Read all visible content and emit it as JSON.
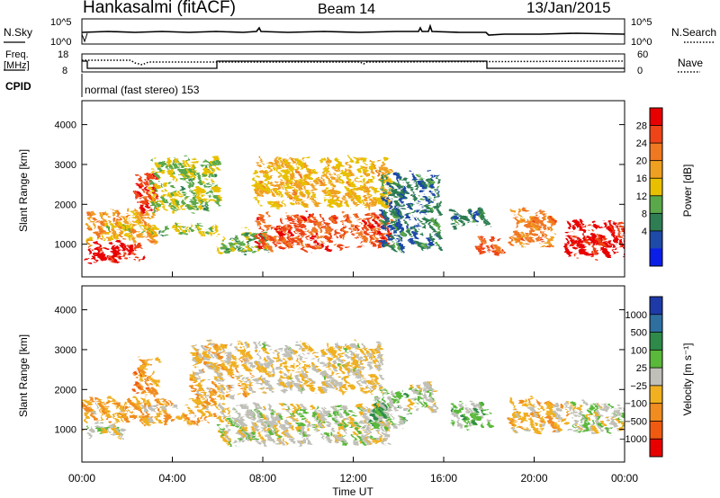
{
  "header": {
    "station": "Hankasalmi (fitACF)",
    "beam": "Beam 14",
    "date": "13/Jan/2015"
  },
  "panels": {
    "nsky_label": "N.Sky",
    "nsearch_label": "N.Search",
    "nsky_ticks": [
      "10^5",
      "10^0"
    ],
    "nsky_right_ticks": [
      "10^5",
      "10^0"
    ],
    "freq_label_line1": "Freq.",
    "freq_label_line2": "[MHz]",
    "freq_ticks": [
      "18",
      "8"
    ],
    "nave_label": "Nave",
    "nave_ticks": [
      "60",
      "0"
    ],
    "cpid_label": "CPID",
    "cpid_text": "normal (fast stereo) 153"
  },
  "axes": {
    "ylabel": "Slant Range [km]",
    "xlabel": "Time UT",
    "xticks": [
      "00:00",
      "04:00",
      "08:00",
      "12:00",
      "16:00",
      "20:00",
      "00:00"
    ],
    "yticks": [
      "1000",
      "2000",
      "3000",
      "4000"
    ]
  },
  "colorbars": {
    "power": {
      "label": "Power [dB]",
      "ticks": [
        "4",
        "8",
        "12",
        "16",
        "20",
        "24",
        "28"
      ],
      "colors": [
        "#0a1ee8",
        "#1e4aa8",
        "#2f7d52",
        "#5aa84a",
        "#e8c000",
        "#f0a020",
        "#f07820",
        "#ee4418",
        "#e80000"
      ]
    },
    "velocity": {
      "label": "Velocity [m s⁻¹]",
      "ticks": [
        "1000",
        "500",
        "100",
        "25",
        "−25",
        "−100",
        "−500",
        "−1000"
      ],
      "colors": [
        "#1e3aa8",
        "#2f6fa0",
        "#2f8a4a",
        "#5ab83a",
        "#c0c0b8",
        "#f0b020",
        "#f08c20",
        "#f05a10",
        "#e80000"
      ]
    }
  },
  "chart_data": [
    {
      "type": "heatmap",
      "title": "Power",
      "xlabel": "Time UT",
      "ylabel": "Slant Range [km]",
      "xlim": [
        "00:00",
        "24:00"
      ],
      "ylim": [
        180,
        4600
      ],
      "zlabel": "Power [dB]",
      "zlim": [
        0,
        32
      ],
      "regions": [
        {
          "t": [
            0.0,
            2.6
          ],
          "range": [
            650,
            1100
          ],
          "value": 30
        },
        {
          "t": [
            0.2,
            3.2
          ],
          "range": [
            1100,
            1900
          ],
          "value": 20
        },
        {
          "t": [
            2.3,
            3.3
          ],
          "range": [
            1900,
            2800
          ],
          "value": 28
        },
        {
          "t": [
            1.0,
            6.0
          ],
          "range": [
            1300,
            1500
          ],
          "value": 14
        },
        {
          "t": [
            3.0,
            6.0
          ],
          "range": [
            1900,
            3200
          ],
          "value": 14
        },
        {
          "t": [
            6.0,
            8.2
          ],
          "range": [
            850,
            1350
          ],
          "value": 12
        },
        {
          "t": [
            7.6,
            13.6
          ],
          "range": [
            950,
            1800
          ],
          "value": 26
        },
        {
          "t": [
            7.6,
            13.6
          ],
          "range": [
            2000,
            3200
          ],
          "value": 18
        },
        {
          "t": [
            13.2,
            15.8
          ],
          "range": [
            950,
            2800
          ],
          "value": 8
        },
        {
          "t": [
            16.3,
            17.9
          ],
          "range": [
            1500,
            1900
          ],
          "value": 10
        },
        {
          "t": [
            17.4,
            18.6
          ],
          "range": [
            820,
            1200
          ],
          "value": 26
        },
        {
          "t": [
            18.9,
            20.8
          ],
          "range": [
            1000,
            1900
          ],
          "value": 22
        },
        {
          "t": [
            21.3,
            24.0
          ],
          "range": [
            780,
            1600
          ],
          "value": 30
        }
      ]
    },
    {
      "type": "heatmap",
      "title": "Velocity",
      "xlabel": "Time UT",
      "ylabel": "Slant Range [km]",
      "xlim": [
        "00:00",
        "24:00"
      ],
      "ylim": [
        180,
        4600
      ],
      "zlabel": "Velocity [m s⁻¹]",
      "zlim": [
        -1000,
        1000
      ],
      "regions": [
        {
          "t": [
            0.0,
            5.9
          ],
          "range": [
            1200,
            1800
          ],
          "value": -300
        },
        {
          "t": [
            0.0,
            2.0
          ],
          "range": [
            880,
            1150
          ],
          "value": 0
        },
        {
          "t": [
            2.3,
            3.3
          ],
          "range": [
            1900,
            2800
          ],
          "value": -400
        },
        {
          "t": [
            4.8,
            7.5
          ],
          "range": [
            1850,
            3200
          ],
          "value": -200
        },
        {
          "t": [
            6.0,
            13.6
          ],
          "range": [
            700,
            1650
          ],
          "value": 0
        },
        {
          "t": [
            7.6,
            13.2
          ],
          "range": [
            2000,
            3200
          ],
          "value": -100
        },
        {
          "t": [
            12.7,
            14.3
          ],
          "range": [
            1100,
            2000
          ],
          "value": 200
        },
        {
          "t": [
            14.3,
            15.6
          ],
          "range": [
            1500,
            2200
          ],
          "value": 0
        },
        {
          "t": [
            16.3,
            18.0
          ],
          "range": [
            1100,
            1700
          ],
          "value": 150
        },
        {
          "t": [
            18.9,
            21.4
          ],
          "range": [
            1000,
            1800
          ],
          "value": -250
        },
        {
          "t": [
            21.4,
            24.0
          ],
          "range": [
            1000,
            1700
          ],
          "value": 0
        }
      ]
    }
  ]
}
